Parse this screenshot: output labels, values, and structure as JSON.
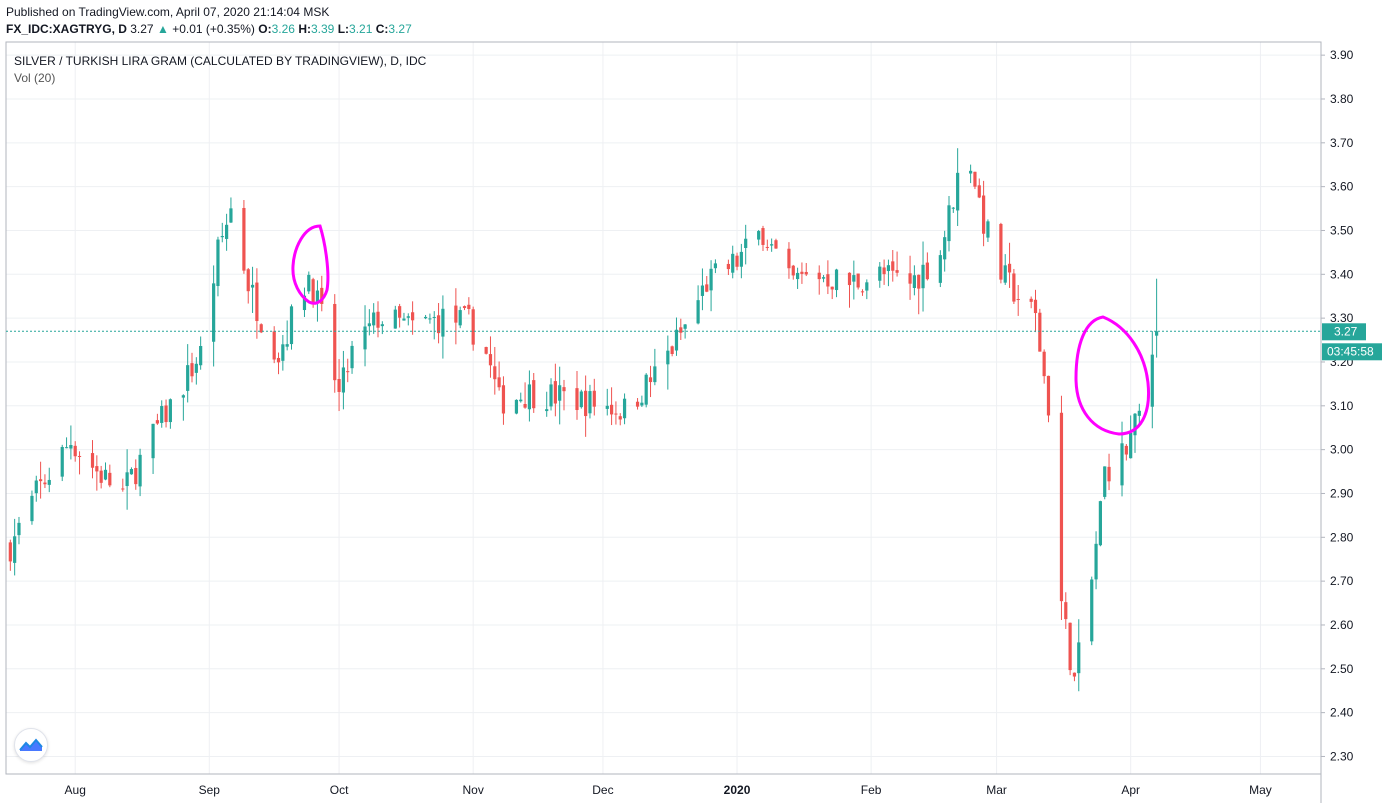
{
  "header": {
    "published": "Published on TradingView.com, April 07, 2020 21:14:04 MSK",
    "symbol": "FX_IDC:XAGTRYG, D",
    "last": "3.27",
    "change": "+0.01 (+0.35%)",
    "open_label": "O:",
    "open": "3.26",
    "high_label": "H:",
    "high": "3.39",
    "low_label": "L:",
    "low": "3.21",
    "close_label": "C:",
    "close": "3.27"
  },
  "pane": {
    "title": "SILVER / TURKISH LIRA GRAM (CALCULATED BY TRADINGVIEW), D, IDC",
    "volume_label": "Vol (20)"
  },
  "price_tag": {
    "value": "3.27",
    "countdown": "03:45:58"
  },
  "colors": {
    "up": "#26a69a",
    "down": "#ef5350",
    "annotation": "#ff00ff",
    "grid": "#eef0f3",
    "tag": "#26a69a"
  },
  "icons": {
    "logo": "tradingview-logo-icon",
    "up_arrow": "triangle-up-icon"
  },
  "chart_data": {
    "type": "candlestick",
    "yaxis": {
      "ticks": [
        "3.90",
        "3.80",
        "3.70",
        "3.60",
        "3.50",
        "3.40",
        "3.30",
        "3.20",
        "3.10",
        "3.00",
        "2.90",
        "2.80",
        "2.70",
        "2.60",
        "2.50",
        "2.40",
        "2.30"
      ],
      "range": [
        2.26,
        3.93
      ]
    },
    "xaxis": {
      "labels": [
        "Aug",
        "Sep",
        "Oct",
        "Nov",
        "Dec",
        "2020",
        "Feb",
        "Mar",
        "Apr",
        "May"
      ]
    },
    "last_price": 3.27,
    "waypoints": [
      [
        "2019-07-17",
        2.78
      ],
      [
        "2019-07-23",
        2.9
      ],
      [
        "2019-07-31",
        3.02
      ],
      [
        "2019-08-06",
        2.95
      ],
      [
        "2019-08-12",
        2.9
      ],
      [
        "2019-08-20",
        3.05
      ],
      [
        "2019-08-26",
        3.15
      ],
      [
        "2019-08-30",
        3.22
      ],
      [
        "2019-09-03",
        3.45
      ],
      [
        "2019-09-06",
        3.55
      ],
      [
        "2019-09-10",
        3.38
      ],
      [
        "2019-09-13",
        3.3
      ],
      [
        "2019-09-17",
        3.22
      ],
      [
        "2019-09-24",
        3.4
      ],
      [
        "2019-09-27",
        3.3
      ],
      [
        "2019-10-01",
        3.12
      ],
      [
        "2019-10-04",
        3.22
      ],
      [
        "2019-10-10",
        3.3
      ],
      [
        "2019-10-18",
        3.28
      ],
      [
        "2019-10-25",
        3.3
      ],
      [
        "2019-10-31",
        3.29
      ],
      [
        "2019-11-04",
        3.22
      ],
      [
        "2019-11-07",
        3.11
      ],
      [
        "2019-11-14",
        3.13
      ],
      [
        "2019-11-22",
        3.12
      ],
      [
        "2019-12-02",
        3.1
      ],
      [
        "2019-12-06",
        3.09
      ],
      [
        "2019-12-13",
        3.17
      ],
      [
        "2019-12-20",
        3.28
      ],
      [
        "2019-12-25",
        3.38
      ],
      [
        "2020-01-01",
        3.43
      ],
      [
        "2020-01-07",
        3.5
      ],
      [
        "2020-01-13",
        3.38
      ],
      [
        "2020-01-20",
        3.4
      ],
      [
        "2020-01-27",
        3.38
      ],
      [
        "2020-02-03",
        3.4
      ],
      [
        "2020-02-10",
        3.38
      ],
      [
        "2020-02-17",
        3.45
      ],
      [
        "2020-02-21",
        3.62
      ],
      [
        "2020-02-24",
        3.66
      ],
      [
        "2020-02-27",
        3.52
      ],
      [
        "2020-03-02",
        3.4
      ],
      [
        "2020-03-06",
        3.35
      ],
      [
        "2020-03-10",
        3.3
      ],
      [
        "2020-03-13",
        3.1
      ],
      [
        "2020-03-16",
        2.65
      ],
      [
        "2020-03-19",
        2.47
      ],
      [
        "2020-03-23",
        2.7
      ],
      [
        "2020-03-26",
        2.95
      ],
      [
        "2020-03-31",
        3.0
      ],
      [
        "2020-04-03",
        3.08
      ],
      [
        "2020-04-07",
        3.27
      ]
    ]
  }
}
